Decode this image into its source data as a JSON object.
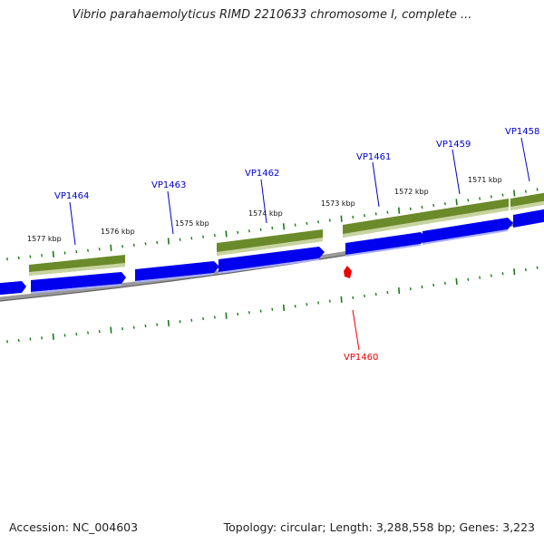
{
  "title": "Vibrio parahaemolyticus RIMD 2210633 chromosome I, complete ...",
  "footer": {
    "accession": "Accession: NC_004603",
    "summary": "Topology: circular; Length: 3,288,558 bp; Genes: 3,223"
  },
  "scale_labels": [
    "1577 kbp",
    "1576 kbp",
    "1575 kbp",
    "1574 kbp",
    "1573 kbp",
    "1572 kbp",
    "1571 kbp"
  ],
  "genes": [
    {
      "id": "VP1464",
      "strand": "reverse",
      "highlighted": false
    },
    {
      "id": "VP1463",
      "strand": "reverse",
      "highlighted": false
    },
    {
      "id": "VP1462",
      "strand": "reverse",
      "highlighted": false
    },
    {
      "id": "VP1461",
      "strand": "reverse",
      "highlighted": false
    },
    {
      "id": "VP1459",
      "strand": "reverse",
      "highlighted": false
    },
    {
      "id": "VP1458",
      "strand": "reverse",
      "highlighted": false
    },
    {
      "id": "VP1460",
      "strand": "forward",
      "highlighted": true
    }
  ],
  "colors": {
    "gene_arrow": "#0000ee",
    "gene_shadow": "#aab0ff",
    "cds_bar": "#6b8a2a",
    "cds_bar_light": "#b8c890",
    "backbone": "#888888",
    "tick": "#1a7a1a",
    "label": "#0000cc",
    "highlight": "#ee0000"
  }
}
